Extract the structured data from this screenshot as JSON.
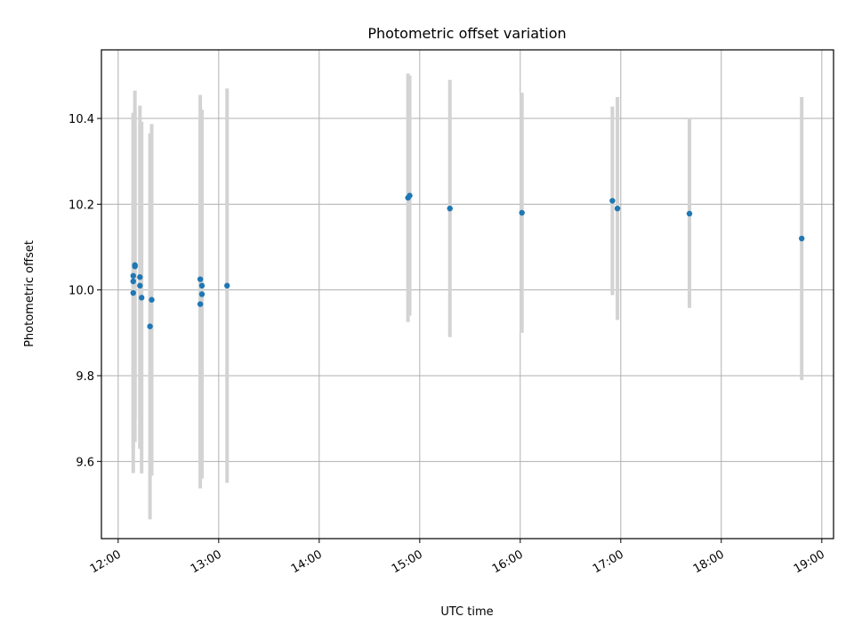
{
  "chart_data": {
    "type": "scatter",
    "title": "Photometric offset variation",
    "xlabel": "UTC time",
    "ylabel": "Photometric offset",
    "xlim": [
      "11:50",
      "19:07"
    ],
    "ylim": [
      9.42,
      10.56
    ],
    "x_ticks": [
      "12:00",
      "13:00",
      "14:00",
      "15:00",
      "16:00",
      "17:00",
      "18:00",
      "19:00"
    ],
    "y_ticks": [
      "9.6",
      "9.8",
      "10.0",
      "10.2",
      "10.4"
    ],
    "grid": true,
    "colors": {
      "point": "#1f77b4",
      "errorbar": "#d3d3d3",
      "grid": "#b0b0b0"
    },
    "points": [
      {
        "time": "12:09",
        "value": 10.033,
        "err": 0.38
      },
      {
        "time": "12:09",
        "value": 10.02,
        "err": 0.39
      },
      {
        "time": "12:09",
        "value": 9.993,
        "err": 0.42
      },
      {
        "time": "12:10",
        "value": 10.055,
        "err": 0.41
      },
      {
        "time": "12:10",
        "value": 10.058,
        "err": 0.36
      },
      {
        "time": "12:13",
        "value": 10.03,
        "err": 0.4
      },
      {
        "time": "12:13",
        "value": 10.01,
        "err": 0.38
      },
      {
        "time": "12:14",
        "value": 9.982,
        "err": 0.41
      },
      {
        "time": "12:19",
        "value": 9.915,
        "err": 0.45
      },
      {
        "time": "12:20",
        "value": 9.977,
        "err": 0.41
      },
      {
        "time": "12:49",
        "value": 10.025,
        "err": 0.43
      },
      {
        "time": "12:49",
        "value": 9.967,
        "err": 0.43
      },
      {
        "time": "12:50",
        "value": 10.01,
        "err": 0.41
      },
      {
        "time": "12:50",
        "value": 9.99,
        "err": 0.43
      },
      {
        "time": "13:05",
        "value": 10.01,
        "err": 0.46
      },
      {
        "time": "14:53",
        "value": 10.215,
        "err": 0.29
      },
      {
        "time": "14:54",
        "value": 10.22,
        "err": 0.28
      },
      {
        "time": "15:18",
        "value": 10.19,
        "err": 0.3
      },
      {
        "time": "16:01",
        "value": 10.18,
        "err": 0.28
      },
      {
        "time": "16:55",
        "value": 10.208,
        "err": 0.22
      },
      {
        "time": "16:58",
        "value": 10.19,
        "err": 0.26
      },
      {
        "time": "17:41",
        "value": 10.178,
        "err": 0.22
      },
      {
        "time": "18:48",
        "value": 10.12,
        "err": 0.33
      }
    ]
  }
}
